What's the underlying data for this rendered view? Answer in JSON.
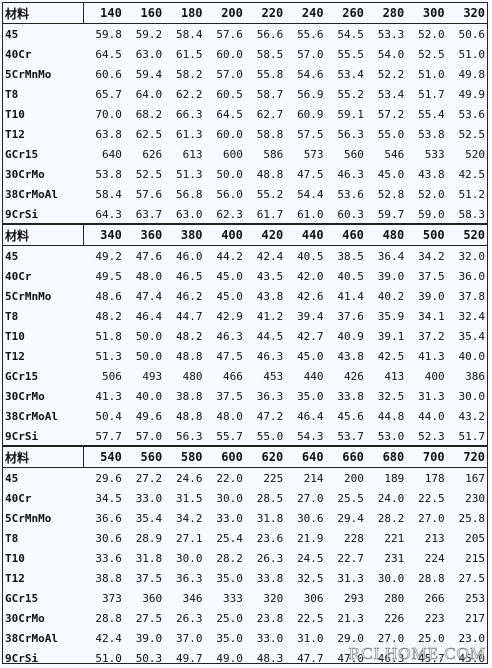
{
  "sections": [
    {
      "header": [
        "材料",
        "140",
        "160",
        "180",
        "200",
        "220",
        "240",
        "260",
        "280",
        "300",
        "320"
      ],
      "rows": [
        [
          "45",
          "59.8",
          "59.2",
          "58.4",
          "57.6",
          "56.6",
          "55.6",
          "54.5",
          "53.3",
          "52.0",
          "50.6"
        ],
        [
          "40Cr",
          "64.5",
          "63.0",
          "61.5",
          "60.0",
          "58.5",
          "57.0",
          "55.5",
          "54.0",
          "52.5",
          "51.0"
        ],
        [
          "5CrMnMo",
          "60.6",
          "59.4",
          "58.2",
          "57.0",
          "55.8",
          "54.6",
          "53.4",
          "52.2",
          "51.0",
          "49.8"
        ],
        [
          "T8",
          "65.7",
          "64.0",
          "62.2",
          "60.5",
          "58.7",
          "56.9",
          "55.2",
          "53.4",
          "51.7",
          "49.9"
        ],
        [
          "T10",
          "70.0",
          "68.2",
          "66.3",
          "64.5",
          "62.7",
          "60.9",
          "59.1",
          "57.2",
          "55.4",
          "53.6"
        ],
        [
          "T12",
          "63.8",
          "62.5",
          "61.3",
          "60.0",
          "58.8",
          "57.5",
          "56.3",
          "55.0",
          "53.8",
          "52.5"
        ],
        [
          "GCr15",
          "640",
          "626",
          "613",
          "600",
          "586",
          "573",
          "560",
          "546",
          "533",
          "520"
        ],
        [
          "30CrMo",
          "53.8",
          "52.5",
          "51.3",
          "50.0",
          "48.8",
          "47.5",
          "46.3",
          "45.0",
          "43.8",
          "42.5"
        ],
        [
          "38CrMoAl",
          "58.4",
          "57.6",
          "56.8",
          "56.0",
          "55.2",
          "54.4",
          "53.6",
          "52.8",
          "52.0",
          "51.2"
        ],
        [
          "9CrSi",
          "64.3",
          "63.7",
          "63.0",
          "62.3",
          "61.7",
          "61.0",
          "60.3",
          "59.7",
          "59.0",
          "58.3"
        ]
      ]
    },
    {
      "header": [
        "材料",
        "340",
        "360",
        "380",
        "400",
        "420",
        "440",
        "460",
        "480",
        "500",
        "520"
      ],
      "rows": [
        [
          "45",
          "49.2",
          "47.6",
          "46.0",
          "44.2",
          "42.4",
          "40.5",
          "38.5",
          "36.4",
          "34.2",
          "32.0"
        ],
        [
          "40Cr",
          "49.5",
          "48.0",
          "46.5",
          "45.0",
          "43.5",
          "42.0",
          "40.5",
          "39.0",
          "37.5",
          "36.0"
        ],
        [
          "5CrMnMo",
          "48.6",
          "47.4",
          "46.2",
          "45.0",
          "43.8",
          "42.6",
          "41.4",
          "40.2",
          "39.0",
          "37.8"
        ],
        [
          "T8",
          "48.2",
          "46.4",
          "44.7",
          "42.9",
          "41.2",
          "39.4",
          "37.6",
          "35.9",
          "34.1",
          "32.4"
        ],
        [
          "T10",
          "51.8",
          "50.0",
          "48.2",
          "46.3",
          "44.5",
          "42.7",
          "40.9",
          "39.1",
          "37.2",
          "35.4"
        ],
        [
          "T12",
          "51.3",
          "50.0",
          "48.8",
          "47.5",
          "46.3",
          "45.0",
          "43.8",
          "42.5",
          "41.3",
          "40.0"
        ],
        [
          "GCr15",
          "506",
          "493",
          "480",
          "466",
          "453",
          "440",
          "426",
          "413",
          "400",
          "386"
        ],
        [
          "30CrMo",
          "41.3",
          "40.0",
          "38.8",
          "37.5",
          "36.3",
          "35.0",
          "33.8",
          "32.5",
          "31.3",
          "30.0"
        ],
        [
          "38CrMoAl",
          "50.4",
          "49.6",
          "48.8",
          "48.0",
          "47.2",
          "46.4",
          "45.6",
          "44.8",
          "44.0",
          "43.2"
        ],
        [
          "9CrSi",
          "57.7",
          "57.0",
          "56.3",
          "55.7",
          "55.0",
          "54.3",
          "53.7",
          "53.0",
          "52.3",
          "51.7"
        ]
      ]
    },
    {
      "header": [
        "材料",
        "540",
        "560",
        "580",
        "600",
        "620",
        "640",
        "660",
        "680",
        "700",
        "720"
      ],
      "rows": [
        [
          "45",
          "29.6",
          "27.2",
          "24.6",
          "22.0",
          "225",
          "214",
          "200",
          "189",
          "178",
          "167"
        ],
        [
          "40Cr",
          "34.5",
          "33.0",
          "31.5",
          "30.0",
          "28.5",
          "27.0",
          "25.5",
          "24.0",
          "22.5",
          "230"
        ],
        [
          "5CrMnMo",
          "36.6",
          "35.4",
          "34.2",
          "33.0",
          "31.8",
          "30.6",
          "29.4",
          "28.2",
          "27.0",
          "25.8"
        ],
        [
          "T8",
          "30.6",
          "28.9",
          "27.1",
          "25.4",
          "23.6",
          "21.9",
          "228",
          "221",
          "213",
          "205"
        ],
        [
          "T10",
          "33.6",
          "31.8",
          "30.0",
          "28.2",
          "26.3",
          "24.5",
          "22.7",
          "231",
          "224",
          "215"
        ],
        [
          "T12",
          "38.8",
          "37.5",
          "36.3",
          "35.0",
          "33.8",
          "32.5",
          "31.3",
          "30.0",
          "28.8",
          "27.5"
        ],
        [
          "GCr15",
          "373",
          "360",
          "346",
          "333",
          "320",
          "306",
          "293",
          "280",
          "266",
          "253"
        ],
        [
          "30CrMo",
          "28.8",
          "27.5",
          "26.3",
          "25.0",
          "23.8",
          "22.5",
          "21.3",
          "226",
          "223",
          "217"
        ],
        [
          "38CrMoAl",
          "42.4",
          "39.0",
          "37.0",
          "35.0",
          "33.0",
          "31.0",
          "29.0",
          "27.0",
          "25.0",
          "23.0"
        ],
        [
          "9CrSi",
          "51.0",
          "50.3",
          "49.7",
          "49.0",
          "48.3",
          "47.7",
          "47.0",
          "46.3",
          "45.7",
          "45.0"
        ]
      ]
    }
  ],
  "watermark": "RCLHOME.COM"
}
